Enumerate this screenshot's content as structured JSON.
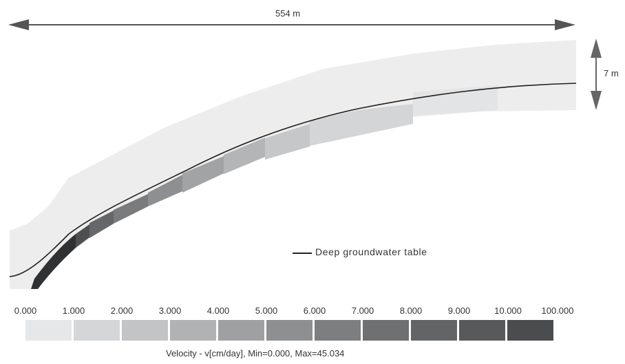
{
  "dimensions": {
    "length_label": "554 m",
    "depth_label": "7 m"
  },
  "legend": {
    "groundwater_label": "Deep groundwater table"
  },
  "colorbar": {
    "ticks": [
      "0.000",
      "1.000",
      "2.000",
      "3.000",
      "4.000",
      "5.000",
      "6.000",
      "7.000",
      "8.000",
      "9.000",
      "10.000",
      "100.000"
    ],
    "colors": [
      "#e6e7e8",
      "#d5d6d8",
      "#c3c4c6",
      "#b1b2b4",
      "#9fa0a2",
      "#8e8f91",
      "#7d7e80",
      "#6f7072",
      "#636466",
      "#58595b",
      "#4b4c4e"
    ],
    "caption": "Velocity  - v[cm/day], Min=0.000, Max=45.034"
  }
}
